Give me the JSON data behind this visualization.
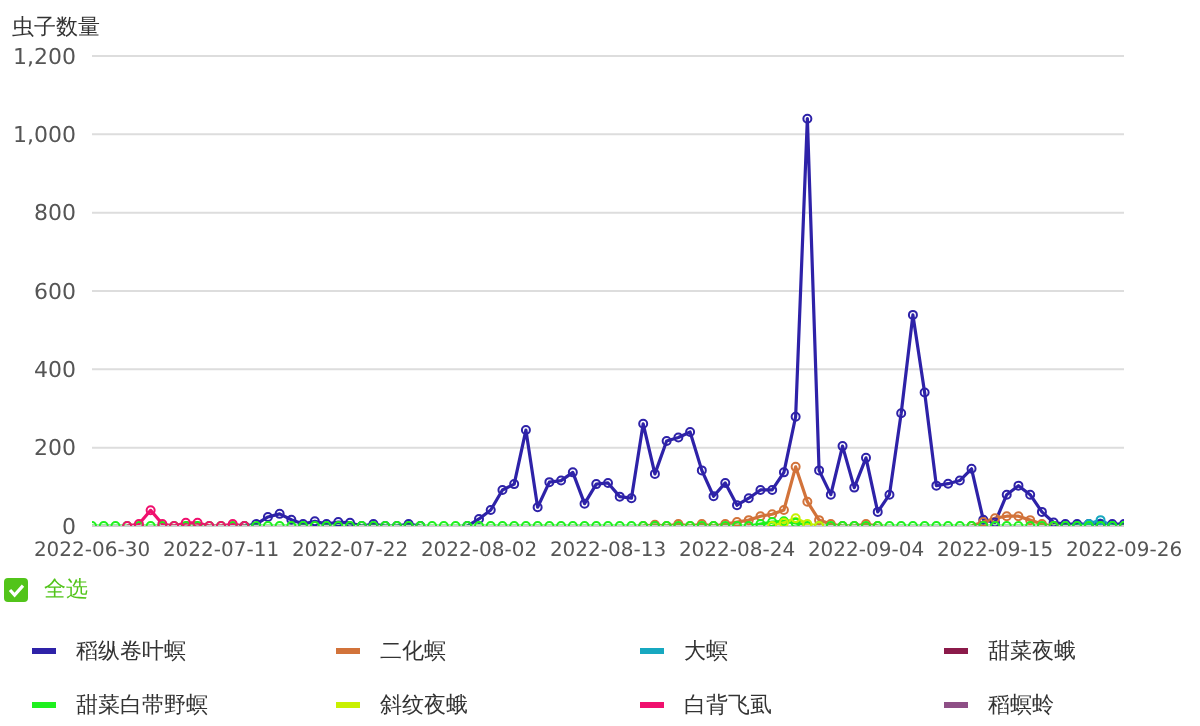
{
  "chart_data": {
    "type": "line",
    "ylabel": "虫子数量",
    "annotations": [
      "全选"
    ],
    "x": [
      "2022-06-30",
      "2022-07-01",
      "2022-07-02",
      "2022-07-03",
      "2022-07-04",
      "2022-07-05",
      "2022-07-06",
      "2022-07-07",
      "2022-07-08",
      "2022-07-09",
      "2022-07-10",
      "2022-07-11",
      "2022-07-12",
      "2022-07-13",
      "2022-07-14",
      "2022-07-15",
      "2022-07-16",
      "2022-07-17",
      "2022-07-18",
      "2022-07-19",
      "2022-07-20",
      "2022-07-21",
      "2022-07-22",
      "2022-07-23",
      "2022-07-24",
      "2022-07-25",
      "2022-07-26",
      "2022-07-27",
      "2022-07-28",
      "2022-07-29",
      "2022-07-30",
      "2022-07-31",
      "2022-08-01",
      "2022-08-02",
      "2022-08-03",
      "2022-08-04",
      "2022-08-05",
      "2022-08-06",
      "2022-08-07",
      "2022-08-08",
      "2022-08-09",
      "2022-08-10",
      "2022-08-11",
      "2022-08-12",
      "2022-08-13",
      "2022-08-14",
      "2022-08-15",
      "2022-08-16",
      "2022-08-17",
      "2022-08-18",
      "2022-08-19",
      "2022-08-20",
      "2022-08-21",
      "2022-08-22",
      "2022-08-23",
      "2022-08-24",
      "2022-08-25",
      "2022-08-26",
      "2022-08-27",
      "2022-08-28",
      "2022-08-29",
      "2022-08-30",
      "2022-08-31",
      "2022-09-01",
      "2022-09-02",
      "2022-09-03",
      "2022-09-04",
      "2022-09-05",
      "2022-09-06",
      "2022-09-07",
      "2022-09-08",
      "2022-09-09",
      "2022-09-10",
      "2022-09-11",
      "2022-09-12",
      "2022-09-13",
      "2022-09-14",
      "2022-09-15",
      "2022-09-16",
      "2022-09-17",
      "2022-09-18",
      "2022-09-19",
      "2022-09-20",
      "2022-09-21",
      "2022-09-22",
      "2022-09-23",
      "2022-09-24",
      "2022-09-25",
      "2022-09-26"
    ],
    "series": [
      {
        "name": "稻纵卷叶螟",
        "color": "#2e22a8",
        "values": [
          null,
          null,
          null,
          null,
          null,
          null,
          null,
          null,
          null,
          null,
          null,
          null,
          null,
          0,
          5,
          23,
          31,
          16,
          5,
          12,
          5,
          10,
          8,
          0,
          5,
          0,
          0,
          5,
          0,
          null,
          null,
          null,
          0,
          18,
          41,
          92,
          107,
          245,
          48,
          112,
          116,
          137,
          57,
          107,
          110,
          75,
          71,
          261,
          133,
          217,
          226,
          240,
          142,
          76,
          110,
          53,
          71,
          92,
          92,
          137,
          279,
          1040,
          142,
          80,
          204,
          98,
          174,
          36,
          80,
          288,
          539,
          341,
          103,
          108,
          116,
          146,
          16,
          9,
          80,
          103,
          80,
          36,
          9,
          5,
          5,
          5,
          5,
          5,
          5
        ]
      },
      {
        "name": "二化螟",
        "color": "#d2733a",
        "values": [
          null,
          null,
          null,
          null,
          null,
          null,
          null,
          null,
          null,
          null,
          null,
          null,
          null,
          null,
          null,
          null,
          null,
          null,
          null,
          null,
          null,
          null,
          null,
          null,
          null,
          null,
          null,
          null,
          null,
          null,
          null,
          null,
          null,
          null,
          null,
          null,
          null,
          null,
          null,
          null,
          null,
          null,
          null,
          null,
          null,
          null,
          null,
          0,
          3,
          0,
          5,
          0,
          5,
          0,
          5,
          10,
          15,
          25,
          30,
          41,
          151,
          62,
          15,
          5,
          0,
          0,
          5,
          0,
          null,
          null,
          null,
          null,
          null,
          null,
          null,
          0,
          10,
          20,
          25,
          25,
          15,
          5,
          0,
          null,
          null,
          null,
          null,
          null,
          null
        ]
      },
      {
        "name": "大螟",
        "color": "#17a8c0",
        "values": [
          null,
          null,
          null,
          null,
          null,
          null,
          null,
          null,
          null,
          null,
          null,
          null,
          null,
          null,
          null,
          null,
          null,
          null,
          null,
          null,
          null,
          null,
          null,
          null,
          null,
          null,
          null,
          null,
          null,
          null,
          null,
          null,
          null,
          null,
          null,
          null,
          null,
          null,
          null,
          null,
          null,
          null,
          null,
          null,
          null,
          null,
          null,
          null,
          null,
          null,
          null,
          null,
          null,
          null,
          null,
          null,
          null,
          null,
          null,
          null,
          null,
          null,
          null,
          null,
          null,
          null,
          null,
          null,
          null,
          null,
          null,
          null,
          null,
          null,
          null,
          null,
          null,
          null,
          null,
          null,
          null,
          null,
          null,
          null,
          0,
          5,
          15,
          0,
          null
        ]
      },
      {
        "name": "甜菜夜蛾",
        "color": "#8b1a4a",
        "values": [
          null,
          null,
          null,
          null,
          null,
          null,
          null,
          null,
          null,
          null,
          null,
          null,
          null,
          null,
          null,
          null,
          null,
          null,
          null,
          null,
          null,
          null,
          null,
          null,
          null,
          null,
          null,
          null,
          null,
          null,
          null,
          null,
          null,
          null,
          null,
          null,
          null,
          null,
          null,
          null,
          null,
          null,
          null,
          null,
          null,
          null,
          null,
          null,
          null,
          null,
          null,
          null,
          null,
          null,
          null,
          null,
          null,
          null,
          null,
          null,
          null,
          null,
          null,
          null,
          null,
          null,
          null,
          null,
          null,
          null,
          null,
          null,
          null,
          null,
          null,
          null,
          null,
          null,
          null,
          null,
          null,
          null,
          null,
          null,
          null,
          null,
          null,
          null,
          null
        ]
      },
      {
        "name": "甜菜白带野螟",
        "color": "#1ef01e",
        "values": [
          0,
          0,
          0,
          0,
          0,
          0,
          0,
          0,
          0,
          0,
          0,
          0,
          0,
          0,
          0,
          0,
          0,
          0,
          0,
          0,
          0,
          0,
          0,
          0,
          0,
          0,
          0,
          0,
          0,
          0,
          0,
          0,
          0,
          0,
          0,
          0,
          0,
          0,
          0,
          0,
          0,
          0,
          0,
          0,
          0,
          0,
          0,
          0,
          0,
          0,
          0,
          0,
          0,
          0,
          0,
          0,
          0,
          5,
          10,
          12,
          8,
          0,
          0,
          0,
          0,
          0,
          0,
          0,
          0,
          0,
          0,
          0,
          0,
          0,
          0,
          0,
          0,
          0,
          0,
          0,
          0,
          0,
          0,
          0,
          0,
          0,
          0,
          0,
          0
        ]
      },
      {
        "name": "斜纹夜蛾",
        "color": "#c8f000",
        "values": [
          null,
          null,
          null,
          null,
          null,
          null,
          null,
          null,
          null,
          null,
          null,
          null,
          null,
          null,
          null,
          null,
          null,
          null,
          null,
          null,
          null,
          null,
          null,
          null,
          null,
          null,
          null,
          null,
          null,
          null,
          null,
          null,
          null,
          null,
          null,
          null,
          null,
          null,
          null,
          null,
          null,
          null,
          null,
          null,
          null,
          null,
          null,
          null,
          null,
          null,
          null,
          null,
          null,
          null,
          null,
          null,
          null,
          null,
          0,
          8,
          20,
          5,
          0,
          null,
          null,
          null,
          null,
          null,
          null,
          null,
          null,
          null,
          null,
          null,
          null,
          null,
          null,
          null,
          null,
          null,
          null,
          null,
          null,
          null,
          null,
          null,
          null,
          null,
          null
        ]
      },
      {
        "name": "白背飞虱",
        "color": "#f0106e",
        "values": [
          null,
          null,
          null,
          0,
          5,
          40,
          5,
          0,
          8,
          8,
          0,
          0,
          5,
          0,
          null,
          null,
          null,
          null,
          null,
          null,
          null,
          null,
          null,
          null,
          null,
          null,
          null,
          null,
          null,
          null,
          null,
          null,
          null,
          null,
          null,
          null,
          null,
          null,
          null,
          null,
          null,
          null,
          null,
          null,
          null,
          null,
          null,
          null,
          null,
          null,
          null,
          null,
          null,
          null,
          null,
          null,
          null,
          null,
          null,
          null,
          null,
          null,
          null,
          null,
          null,
          null,
          null,
          null,
          null,
          null,
          null,
          null,
          null,
          null,
          null,
          null,
          null,
          null,
          null,
          null,
          null,
          null,
          null,
          null,
          null,
          null,
          null,
          null,
          null
        ]
      },
      {
        "name": "稻螟蛉",
        "color": "#8e4f86",
        "values": [
          null,
          null,
          null,
          null,
          null,
          null,
          null,
          null,
          null,
          null,
          null,
          null,
          null,
          null,
          null,
          null,
          null,
          null,
          null,
          null,
          null,
          null,
          null,
          null,
          null,
          null,
          null,
          null,
          null,
          null,
          null,
          null,
          null,
          null,
          null,
          null,
          null,
          null,
          null,
          null,
          null,
          null,
          null,
          null,
          null,
          null,
          null,
          null,
          null,
          null,
          null,
          null,
          null,
          null,
          null,
          null,
          null,
          null,
          null,
          null,
          null,
          null,
          null,
          null,
          null,
          null,
          null,
          null,
          null,
          null,
          null,
          null,
          null,
          null,
          null,
          null,
          null,
          null,
          null,
          null,
          null,
          null,
          null,
          null,
          null,
          null,
          null,
          null,
          null
        ]
      }
    ],
    "xlim": [
      "2022-06-30",
      "2022-09-26"
    ],
    "xticks": [
      "2022-06-30",
      "2022-07-11",
      "2022-07-22",
      "2022-08-02",
      "2022-08-13",
      "2022-08-24",
      "2022-09-04",
      "2022-09-15",
      "2022-09-26"
    ],
    "ylim": [
      0,
      1200
    ],
    "yticks": [
      0,
      200,
      400,
      600,
      800,
      {
        "value": 1000,
        "label": "1,000"
      },
      {
        "value": 1200,
        "label": "1,200"
      }
    ],
    "grid": "y",
    "legend": "bottom",
    "marker": "circle",
    "line_style": "solid"
  }
}
